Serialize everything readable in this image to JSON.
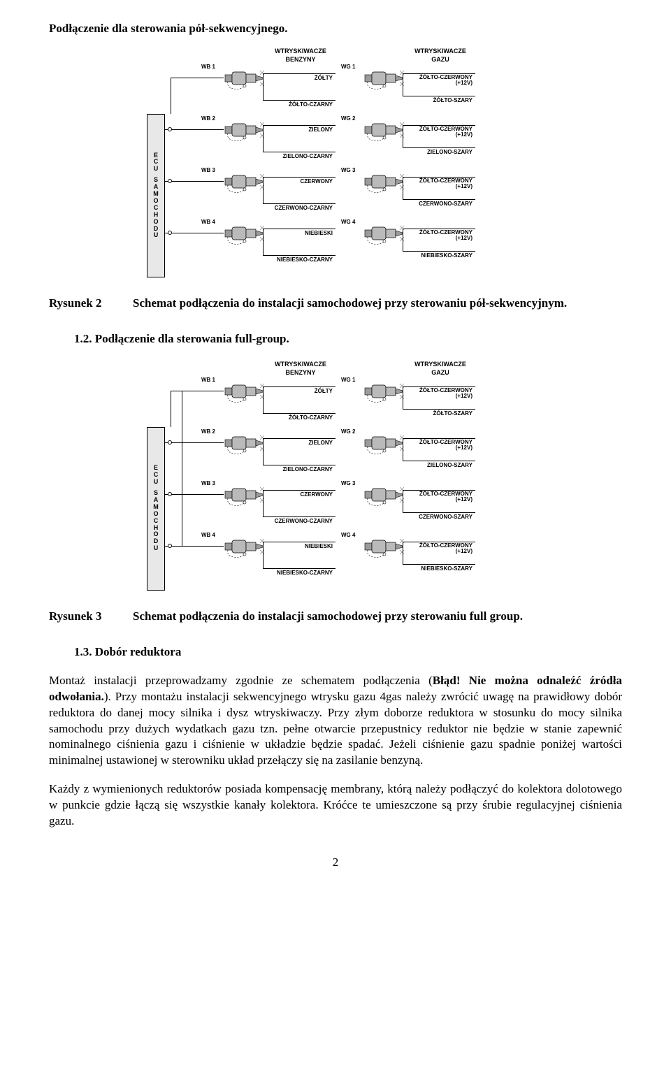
{
  "title1": "Podłączenie dla sterowania pół-sekwencyjnego.",
  "fig2_label": "Rysunek 2",
  "fig2_caption": "Schemat podłączenia do instalacji samochodowej przy sterowaniu pół-sekwencyjnym.",
  "heading12": "1.2. Podłączenie dla sterowania full-group.",
  "fig3_label": "Rysunek 3",
  "fig3_caption": "Schemat podłączenia do instalacji samochodowej przy sterowaniu full group.",
  "heading13": "1.3. Dobór reduktora",
  "para1": "Montaż instalacji przeprowadzamy zgodnie ze schematem podłączenia (Błąd! Nie można odnaleźć źródła odwołania.). Przy montażu instalacji sekwencyjnego wtrysku gazu 4gas należy zwrócić uwagę na prawidłowy dobór reduktora do danej mocy silnika i dysz wtryskiwaczy. Przy złym doborze reduktora w stosunku do mocy silnika samochodu przy dużych wydatkach gazu tzn. pełne otwarcie przepustnicy reduktor nie będzie w stanie zapewnić nominalnego ciśnienia gazu i ciśnienie w układzie będzie spadać. Jeżeli ciśnienie gazu spadnie poniżej wartości minimalnej ustawionej w sterowniku układ przełączy się na zasilanie benzyną.",
  "para1_bold_start": "Błąd! Nie można odnaleźć źródła odwołania.",
  "para2": "Każdy z wymienionych reduktorów posiada kompensację membrany, którą należy podłączyć do kolektora dolotowego w punkcie gdzie łączą się wszystkie kanały kolektora. Króćce te umieszczone są przy śrubie regulacyjnej ciśnienia gazu.",
  "page_number": "2",
  "ecu_label": "ECU SAMOCHODU",
  "diagram": {
    "left_header": "WTRYSKIWACZE BENZYNY",
    "right_header": "WTRYSKIWACZE GAZU",
    "injector_body": "#bababa",
    "injector_body2": "#9b9b9b",
    "rows": [
      {
        "wb": "WB 1",
        "wg": "WG 1",
        "wire_top": "ŻÓŁTY",
        "wire_bot": "ŻÓŁTO-CZARNY",
        "gas_top": "ŻÓŁTO-CZERWONY",
        "gas_top2": "(+12V)",
        "gas_bot": "ŻÓŁTO-SZARY"
      },
      {
        "wb": "WB 2",
        "wg": "WG 2",
        "wire_top": "ZIELONY",
        "wire_bot": "ZIELONO-CZARNY",
        "gas_top": "ŻÓŁTO-CZERWONY",
        "gas_top2": "(+12V)",
        "gas_bot": "ZIELONO-SZARY"
      },
      {
        "wb": "WB 3",
        "wg": "WG 3",
        "wire_top": "CZERWONY",
        "wire_bot": "CZERWONO-CZARNY",
        "gas_top": "ŻÓŁTO-CZERWONY",
        "gas_top2": "(+12V)",
        "gas_bot": "CZERWONO-SZARY"
      },
      {
        "wb": "WB 4",
        "wg": "WG 4",
        "wire_top": "NIEBIESKI",
        "wire_bot": "NIEBIESKO-CZARNY",
        "gas_top": "ŻÓŁTO-CZERWONY",
        "gas_top2": "(+12V)",
        "gas_bot": "NIEBIESKO-SZARY"
      }
    ]
  }
}
